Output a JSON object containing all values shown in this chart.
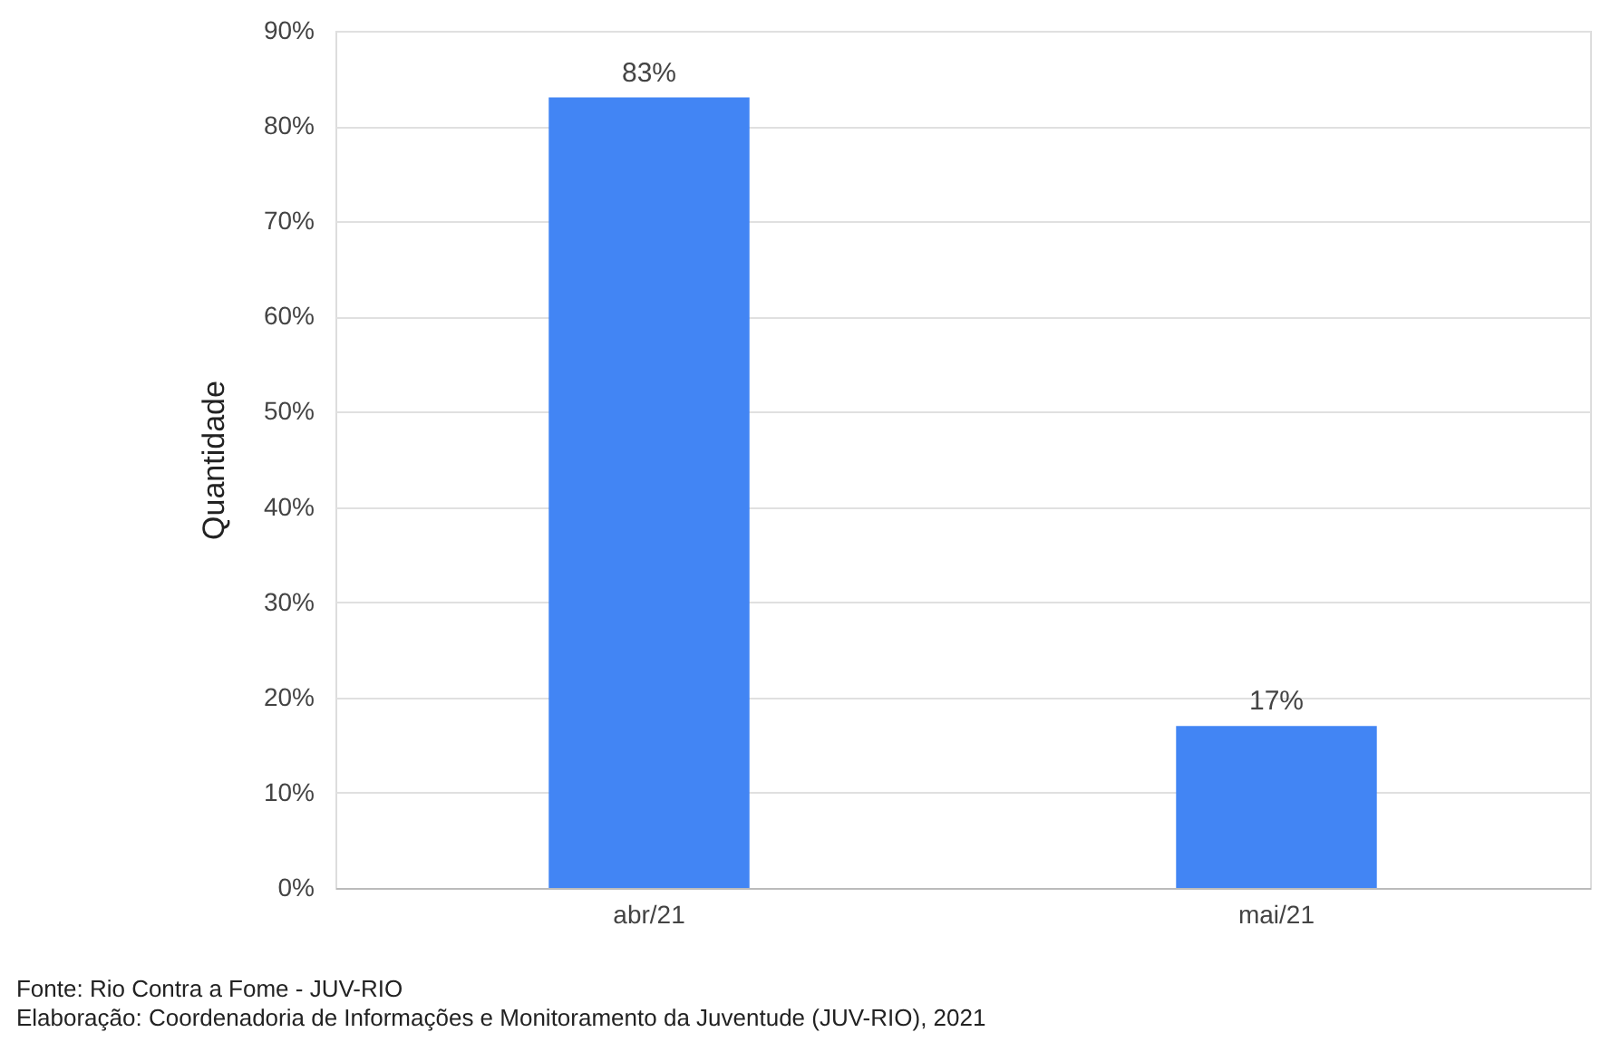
{
  "chart_data": {
    "type": "bar",
    "categories": [
      "abr/21",
      "mai/21"
    ],
    "values": [
      83,
      17
    ],
    "value_labels": [
      "83%",
      "17%"
    ],
    "color": "#4285f4",
    "ylabel": "Quantidade",
    "ylim": [
      0,
      90
    ],
    "yticks": [
      {
        "value": 0,
        "label": "0%"
      },
      {
        "value": 10,
        "label": "10%"
      },
      {
        "value": 20,
        "label": "20%"
      },
      {
        "value": 30,
        "label": "30%"
      },
      {
        "value": 40,
        "label": "40%"
      },
      {
        "value": 50,
        "label": "50%"
      },
      {
        "value": 60,
        "label": "60%"
      },
      {
        "value": 70,
        "label": "70%"
      },
      {
        "value": 80,
        "label": "80%"
      },
      {
        "value": 90,
        "label": "90%"
      }
    ],
    "grid": "y",
    "annotations": [
      "Fonte: Rio Contra a Fome - JUV-RIO",
      "Elaboração: Coordenadoria de Informações e Monitoramento da Juventude (JUV-RIO), 2021"
    ]
  }
}
